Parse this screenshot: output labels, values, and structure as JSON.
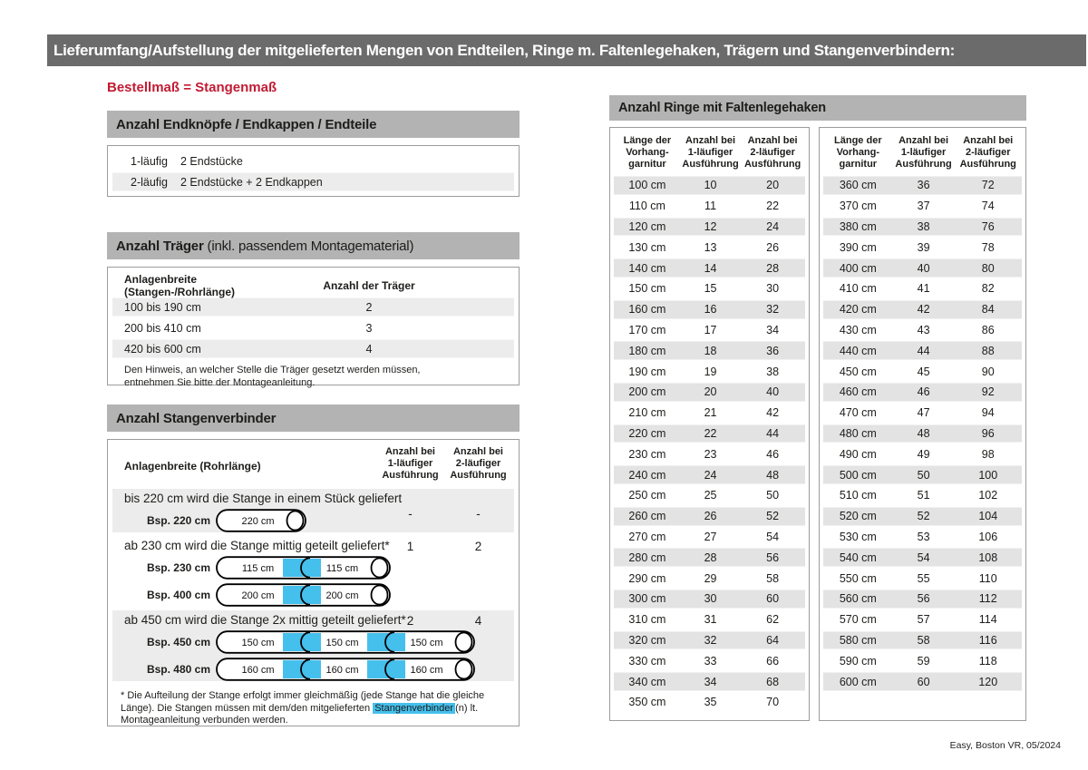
{
  "colors": {
    "accent_red": "#c21b33",
    "connector_blue": "#45bfec",
    "title_bar_gray": "#6b6b6b",
    "section_header_gray": "#b3b3b3",
    "shaded_row_gray": "#ececec"
  },
  "page": {
    "title_bar": "Lieferumfang/Aufstellung der mitgelieferten Mengen von Endteilen, Ringe m. Faltenlegehaken, Trägern und Stangenverbindern:",
    "subtitle": "Bestellmaß = Stangenmaß",
    "footer": "Easy, Boston VR, 05/2024"
  },
  "endteile": {
    "header": "Anzahl Endknöpfe / Endkappen / Endteile",
    "rows": [
      {
        "label": "1-läufig",
        "value": "2 Endstücke"
      },
      {
        "label": "2-läufig",
        "value": "2 Endstücke + 2 Endkappen"
      }
    ]
  },
  "traeger": {
    "header_bold": "Anzahl Träger",
    "header_rest": " (inkl. passendem Montagematerial)",
    "col1": "Anlagenbreite (Stangen-/Rohrlänge)",
    "col2": "Anzahl der Träger",
    "rows": [
      {
        "range": "100 bis 190 cm",
        "count": "2"
      },
      {
        "range": "200 bis 410 cm",
        "count": "3"
      },
      {
        "range": "420 bis 600 cm",
        "count": "4"
      }
    ],
    "note": "Den Hinweis, an welcher Stelle die Träger gesetzt werden müssen, entnehmen Sie bitte der Montageanleitung."
  },
  "verbinder": {
    "header": "Anzahl Stangenverbinder",
    "col1": "Anlagenbreite (Rohrlänge)",
    "col2": [
      "Anzahl bei",
      "1-läufiger",
      "Ausführung"
    ],
    "col3": [
      "Anzahl bei",
      "2-läufiger",
      "Ausführung"
    ],
    "blocks": [
      {
        "text": "bis 220 cm wird die Stange in einem Stück geliefert",
        "v1": "-",
        "v2": "-",
        "rods": [
          {
            "label": "Bsp. 220 cm",
            "segments": [
              "220 cm"
            ]
          }
        ]
      },
      {
        "text": "ab 230 cm wird die Stange mittig geteilt geliefert*",
        "v1": "1",
        "v2": "2",
        "rods": [
          {
            "label": "Bsp. 230 cm",
            "segments": [
              "115 cm",
              "115 cm"
            ]
          },
          {
            "label": "Bsp. 400 cm",
            "segments": [
              "200 cm",
              "200 cm"
            ]
          }
        ]
      },
      {
        "text": "ab 450 cm wird die Stange 2x mittig geteilt geliefert*",
        "v1": "2",
        "v2": "4",
        "rods": [
          {
            "label": "Bsp. 450 cm",
            "segments": [
              "150 cm",
              "150 cm",
              "150 cm"
            ]
          },
          {
            "label": "Bsp. 480 cm",
            "segments": [
              "160 cm",
              "160 cm",
              "160 cm"
            ]
          }
        ]
      }
    ],
    "footnote_pre": "* Die Aufteilung der Stange erfolgt immer gleichmäßig (jede Stange hat die gleiche Länge). Die Stangen müssen mit dem/den mitgelieferten ",
    "footnote_highlight": "Stangenverbinder",
    "footnote_post": "(n) lt. Montageanleitung verbunden werden."
  },
  "ringe": {
    "header": "Anzahl Ringe mit Faltenlegehaken",
    "col_headers": [
      [
        "Länge der",
        "Vorhang-",
        "garnitur"
      ],
      [
        "Anzahl bei",
        "1-läufiger",
        "Ausführung"
      ],
      [
        "Anzahl bei",
        "2-läufiger",
        "Ausführung"
      ]
    ],
    "table_left": [
      [
        "100 cm",
        "10",
        "20"
      ],
      [
        "110 cm",
        "11",
        "22"
      ],
      [
        "120 cm",
        "12",
        "24"
      ],
      [
        "130 cm",
        "13",
        "26"
      ],
      [
        "140 cm",
        "14",
        "28"
      ],
      [
        "150 cm",
        "15",
        "30"
      ],
      [
        "160 cm",
        "16",
        "32"
      ],
      [
        "170 cm",
        "17",
        "34"
      ],
      [
        "180 cm",
        "18",
        "36"
      ],
      [
        "190 cm",
        "19",
        "38"
      ],
      [
        "200 cm",
        "20",
        "40"
      ],
      [
        "210 cm",
        "21",
        "42"
      ],
      [
        "220 cm",
        "22",
        "44"
      ],
      [
        "230 cm",
        "23",
        "46"
      ],
      [
        "240 cm",
        "24",
        "48"
      ],
      [
        "250 cm",
        "25",
        "50"
      ],
      [
        "260 cm",
        "26",
        "52"
      ],
      [
        "270 cm",
        "27",
        "54"
      ],
      [
        "280 cm",
        "28",
        "56"
      ],
      [
        "290 cm",
        "29",
        "58"
      ],
      [
        "300 cm",
        "30",
        "60"
      ],
      [
        "310 cm",
        "31",
        "62"
      ],
      [
        "320 cm",
        "32",
        "64"
      ],
      [
        "330 cm",
        "33",
        "66"
      ],
      [
        "340 cm",
        "34",
        "68"
      ],
      [
        "350 cm",
        "35",
        "70"
      ]
    ],
    "table_right": [
      [
        "360 cm",
        "36",
        "72"
      ],
      [
        "370 cm",
        "37",
        "74"
      ],
      [
        "380 cm",
        "38",
        "76"
      ],
      [
        "390 cm",
        "39",
        "78"
      ],
      [
        "400 cm",
        "40",
        "80"
      ],
      [
        "410 cm",
        "41",
        "82"
      ],
      [
        "420 cm",
        "42",
        "84"
      ],
      [
        "430 cm",
        "43",
        "86"
      ],
      [
        "440 cm",
        "44",
        "88"
      ],
      [
        "450 cm",
        "45",
        "90"
      ],
      [
        "460 cm",
        "46",
        "92"
      ],
      [
        "470 cm",
        "47",
        "94"
      ],
      [
        "480 cm",
        "48",
        "96"
      ],
      [
        "490 cm",
        "49",
        "98"
      ],
      [
        "500 cm",
        "50",
        "100"
      ],
      [
        "510 cm",
        "51",
        "102"
      ],
      [
        "520 cm",
        "52",
        "104"
      ],
      [
        "530 cm",
        "53",
        "106"
      ],
      [
        "540 cm",
        "54",
        "108"
      ],
      [
        "550 cm",
        "55",
        "110"
      ],
      [
        "560 cm",
        "56",
        "112"
      ],
      [
        "570 cm",
        "57",
        "114"
      ],
      [
        "580 cm",
        "58",
        "116"
      ],
      [
        "590 cm",
        "59",
        "118"
      ],
      [
        "600 cm",
        "60",
        "120"
      ]
    ]
  }
}
